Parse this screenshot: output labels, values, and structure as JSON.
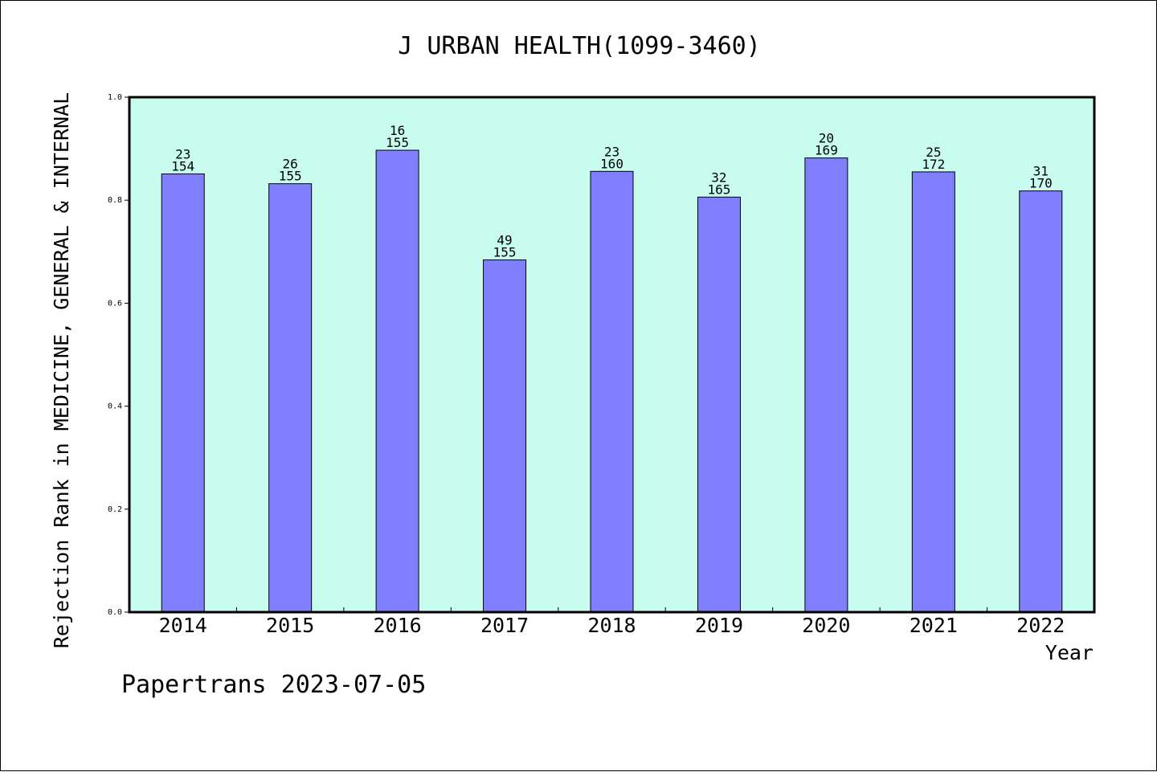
{
  "chart_data": {
    "type": "bar",
    "title": "J URBAN HEALTH(1099-3460)",
    "xlabel": "Year",
    "ylabel": "Rejection Rank in MEDICINE, GENERAL & INTERNAL",
    "ylim": [
      0,
      1.0
    ],
    "yticks": [
      "0.0",
      "0.2",
      "0.4",
      "0.6",
      "0.8",
      "1.0"
    ],
    "grid": false,
    "categories": [
      "2014",
      "2015",
      "2016",
      "2017",
      "2018",
      "2019",
      "2020",
      "2021",
      "2022"
    ],
    "values": [
      0.851,
      0.832,
      0.897,
      0.684,
      0.856,
      0.806,
      0.882,
      0.855,
      0.818
    ],
    "rank_labels": [
      "23",
      "26",
      "16",
      "49",
      "23",
      "32",
      "20",
      "25",
      "31"
    ],
    "total_labels": [
      "154",
      "155",
      "155",
      "155",
      "160",
      "165",
      "169",
      "172",
      "170"
    ],
    "colors": {
      "bar": "#8080ff",
      "plot_background": "#c8fcee",
      "axis": "#000000"
    }
  },
  "footer": {
    "text": "Papertrans 2023-07-05"
  }
}
